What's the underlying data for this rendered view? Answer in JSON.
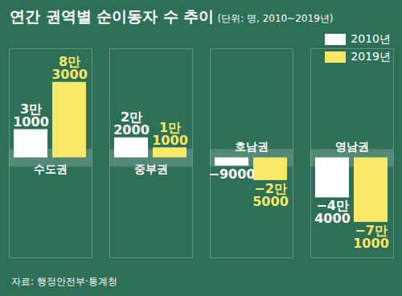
{
  "chart_data": {
    "type": "bar",
    "title": "연간 권역별 순이동자 수 추이",
    "subtitle": "(단위: 명, 2010~2019년)",
    "source": "자료: 행정안전부·통계청",
    "categories": [
      "수도권",
      "중부권",
      "호남권",
      "영남권"
    ],
    "series": [
      {
        "name": "2010년",
        "color": "#ffffff",
        "values": [
          31000,
          22000,
          -9000,
          -44000
        ],
        "value_labels": [
          "3만\n1000",
          "2만\n2000",
          "−9000",
          "−4만\n4000"
        ]
      },
      {
        "name": "2019년",
        "color": "#f7e967",
        "values": [
          83000,
          11000,
          -25000,
          -71000
        ],
        "value_labels": [
          "8만\n3000",
          "1만\n1000",
          "−2만\n5000",
          "−7만\n1000"
        ]
      }
    ],
    "ylim": [
      -110000,
      120000
    ],
    "yticks": [],
    "data_labels": true,
    "tick_labels": false,
    "legend": "top-right",
    "grid": false
  }
}
